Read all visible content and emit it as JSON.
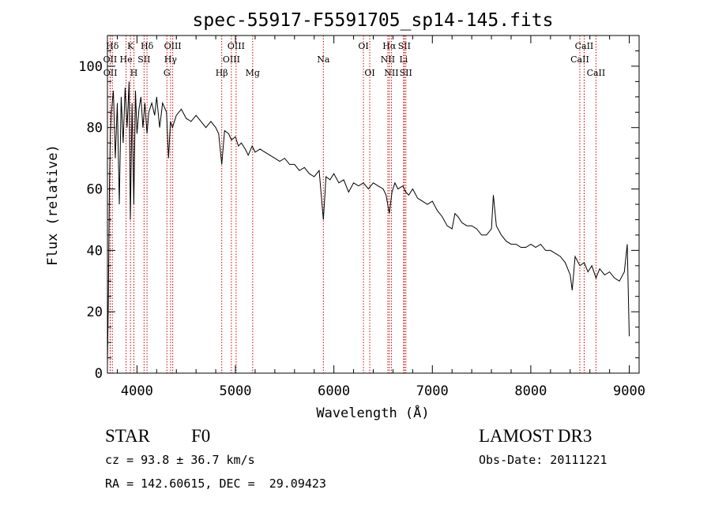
{
  "chart_data": {
    "type": "line",
    "title": "spec-55917-F5591705_sp14-145.fits",
    "xlabel": "Wavelength (Å)",
    "ylabel": "Flux (relative)",
    "xlim": [
      3700,
      9100
    ],
    "ylim": [
      0,
      110
    ],
    "xticks": [
      4000,
      5000,
      6000,
      7000,
      8000,
      9000
    ],
    "yticks": [
      0,
      20,
      40,
      60,
      80,
      100
    ],
    "series": [
      {
        "name": "flux",
        "x": [
          3700,
          3710,
          3720,
          3730,
          3740,
          3760,
          3780,
          3800,
          3820,
          3840,
          3860,
          3880,
          3900,
          3920,
          3933,
          3950,
          3968,
          3985,
          4000,
          4020,
          4040,
          4060,
          4080,
          4102,
          4120,
          4150,
          4180,
          4200,
          4230,
          4260,
          4300,
          4320,
          4340,
          4360,
          4400,
          4450,
          4500,
          4550,
          4600,
          4650,
          4700,
          4750,
          4800,
          4830,
          4861,
          4890,
          4930,
          4960,
          5000,
          5030,
          5060,
          5100,
          5130,
          5170,
          5200,
          5250,
          5300,
          5350,
          5400,
          5450,
          5500,
          5550,
          5600,
          5650,
          5700,
          5750,
          5800,
          5850,
          5893,
          5920,
          5960,
          6000,
          6050,
          6100,
          6150,
          6200,
          6250,
          6300,
          6350,
          6400,
          6450,
          6500,
          6530,
          6563,
          6590,
          6620,
          6650,
          6700,
          6730,
          6760,
          6800,
          6850,
          6900,
          6950,
          7000,
          7050,
          7100,
          7150,
          7200,
          7230,
          7260,
          7300,
          7350,
          7400,
          7450,
          7500,
          7550,
          7600,
          7620,
          7650,
          7700,
          7750,
          7800,
          7850,
          7900,
          7950,
          8000,
          8050,
          8100,
          8150,
          8200,
          8250,
          8300,
          8350,
          8400,
          8420,
          8450,
          8498,
          8542,
          8580,
          8620,
          8662,
          8700,
          8750,
          8800,
          8850,
          8900,
          8950,
          8980,
          9000
        ],
        "values": [
          3,
          25,
          60,
          78,
          85,
          92,
          70,
          88,
          55,
          90,
          75,
          93,
          80,
          95,
          50,
          88,
          55,
          92,
          78,
          86,
          90,
          80,
          88,
          78,
          85,
          88,
          84,
          90,
          80,
          88,
          85,
          70,
          82,
          80,
          84,
          86,
          83,
          82,
          84,
          82,
          80,
          82,
          80,
          78,
          68,
          79,
          78,
          76,
          77,
          74,
          75,
          73,
          71,
          74,
          72,
          73,
          72,
          71,
          70,
          69,
          70,
          68,
          68,
          66,
          67,
          65,
          64,
          66,
          50,
          64,
          63,
          65,
          62,
          63,
          59,
          62,
          61,
          62,
          60,
          62,
          61,
          60,
          58,
          52,
          59,
          62,
          60,
          61,
          59,
          58,
          60,
          57,
          56,
          55,
          56,
          53,
          51,
          48,
          47,
          52,
          51,
          49,
          48,
          48,
          47,
          45,
          45,
          47,
          58,
          48,
          45,
          43,
          42,
          42,
          41,
          41,
          42,
          41,
          42,
          40,
          40,
          39,
          38,
          36,
          32,
          27,
          38,
          35,
          36,
          33,
          35,
          31,
          34,
          32,
          33,
          31,
          30,
          33,
          42,
          12
        ]
      }
    ],
    "line_markers": [
      {
        "label": "Hδ",
        "wavelength": 3750,
        "row": 0
      },
      {
        "label": "OII",
        "wavelength": 3727,
        "row": 1
      },
      {
        "label": "OII",
        "wavelength": 3729,
        "row": 2
      },
      {
        "label": "K",
        "wavelength": 3934,
        "row": 0
      },
      {
        "label": "He",
        "wavelength": 3889,
        "row": 1
      },
      {
        "label": "H",
        "wavelength": 3969,
        "row": 2
      },
      {
        "label": "SII",
        "wavelength": 4072,
        "row": 1
      },
      {
        "label": "Hδ",
        "wavelength": 4102,
        "row": 0
      },
      {
        "label": "OIII",
        "wavelength": 4363,
        "row": 0
      },
      {
        "label": "Hγ",
        "wavelength": 4341,
        "row": 1
      },
      {
        "label": "G",
        "wavelength": 4304,
        "row": 2
      },
      {
        "label": "Hβ",
        "wavelength": 4861,
        "row": 2
      },
      {
        "label": "OIII",
        "wavelength": 5007,
        "row": 0
      },
      {
        "label": "OIII",
        "wavelength": 4959,
        "row": 1
      },
      {
        "label": "Mg",
        "wavelength": 5175,
        "row": 2
      },
      {
        "label": "Na",
        "wavelength": 5893,
        "row": 1
      },
      {
        "label": "OI",
        "wavelength": 6300,
        "row": 0
      },
      {
        "label": "OI",
        "wavelength": 6364,
        "row": 2
      },
      {
        "label": "Hα",
        "wavelength": 6563,
        "row": 0
      },
      {
        "label": "SII",
        "wavelength": 6716,
        "row": 0
      },
      {
        "label": "NII",
        "wavelength": 6548,
        "row": 1
      },
      {
        "label": "Li",
        "wavelength": 6708,
        "row": 1
      },
      {
        "label": "NII",
        "wavelength": 6584,
        "row": 2
      },
      {
        "label": "SII",
        "wavelength": 6731,
        "row": 2
      },
      {
        "label": "CaII",
        "wavelength": 8542,
        "row": 0
      },
      {
        "label": "CaII",
        "wavelength": 8498,
        "row": 1
      },
      {
        "label": "CaII",
        "wavelength": 8662,
        "row": 2
      }
    ]
  },
  "info": {
    "object_class": "STAR",
    "subclass": "F0",
    "survey": "LAMOST DR3",
    "redshift": "cz = 93.8 ± 36.7 km/s",
    "obs_date": "Obs-Date: 20111221",
    "coords": "RA = 142.60615, DEC =  29.09423"
  },
  "colors": {
    "line": "#000000",
    "marker": "#cc0000",
    "background": "#ffffff"
  }
}
